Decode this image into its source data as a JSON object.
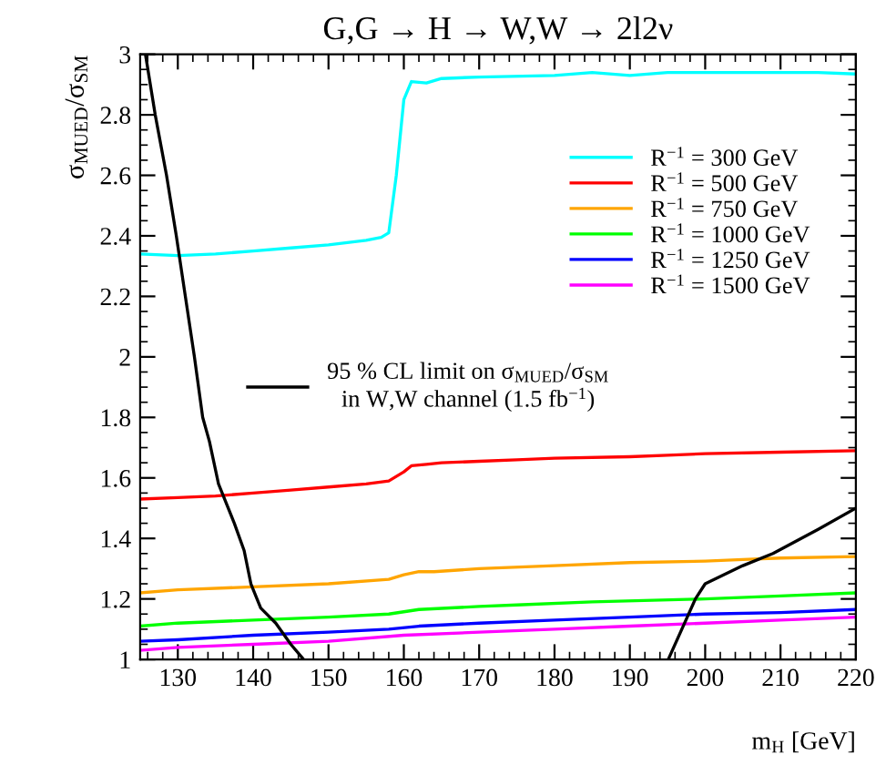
{
  "chart_data": {
    "type": "line",
    "title": "G,G → H → W,W → 2l2ν",
    "xlabel": "m$_{H}$ [GeV]",
    "ylabel": "σ$_{MUED}$/σ$_{SM}$",
    "xlim": [
      125,
      220
    ],
    "xticks": [
      130,
      140,
      150,
      160,
      170,
      180,
      190,
      200,
      210,
      220
    ],
    "ylim": [
      1,
      3
    ],
    "yticks": [
      1,
      1.2,
      1.4,
      1.6,
      1.8,
      2,
      2.2,
      2.4,
      2.6,
      2.8,
      3
    ],
    "grid": false,
    "legend": "right",
    "line_style": "solid",
    "marker": "none",
    "series": [
      {
        "name": "R$^{−1}$ = 300 GeV",
        "color": "#00ffff",
        "x": [
          125,
          130,
          135,
          140,
          145,
          150,
          155,
          157,
          158,
          159,
          160,
          161,
          163,
          165,
          170,
          180,
          185,
          190,
          195,
          200,
          205,
          210,
          215,
          220
        ],
        "values": [
          2.34,
          2.335,
          2.34,
          2.35,
          2.36,
          2.37,
          2.385,
          2.395,
          2.41,
          2.6,
          2.85,
          2.91,
          2.905,
          2.92,
          2.925,
          2.93,
          2.94,
          2.93,
          2.94,
          2.94,
          2.94,
          2.94,
          2.94,
          2.935
        ]
      },
      {
        "name": "R$^{−1}$ = 500 GeV",
        "color": "#ff0000",
        "x": [
          125,
          130,
          135,
          140,
          145,
          150,
          155,
          158,
          160,
          161,
          163,
          165,
          170,
          175,
          180,
          190,
          195,
          200,
          210,
          220
        ],
        "values": [
          1.53,
          1.535,
          1.54,
          1.55,
          1.56,
          1.57,
          1.58,
          1.59,
          1.62,
          1.64,
          1.645,
          1.65,
          1.655,
          1.66,
          1.665,
          1.67,
          1.675,
          1.68,
          1.685,
          1.69
        ]
      },
      {
        "name": "R$^{−1}$ = 750 GeV",
        "color": "#ffa500",
        "x": [
          125,
          130,
          140,
          150,
          158,
          160,
          162,
          164,
          170,
          180,
          190,
          200,
          205,
          210,
          220
        ],
        "values": [
          1.22,
          1.23,
          1.24,
          1.25,
          1.265,
          1.28,
          1.29,
          1.29,
          1.3,
          1.31,
          1.32,
          1.325,
          1.33,
          1.335,
          1.34
        ]
      },
      {
        "name": "R$^{−1}$ = 1000 GeV",
        "color": "#00ff00",
        "x": [
          125,
          130,
          140,
          150,
          158,
          162,
          170,
          175,
          185,
          200,
          210,
          220
        ],
        "values": [
          1.11,
          1.12,
          1.13,
          1.14,
          1.15,
          1.165,
          1.175,
          1.18,
          1.19,
          1.2,
          1.21,
          1.22
        ]
      },
      {
        "name": "R$^{−1}$ = 1250 GeV",
        "color": "#0000ff",
        "x": [
          125,
          130,
          140,
          150,
          158,
          162,
          170,
          180,
          190,
          200,
          210,
          220
        ],
        "values": [
          1.06,
          1.065,
          1.08,
          1.09,
          1.1,
          1.11,
          1.12,
          1.13,
          1.14,
          1.15,
          1.155,
          1.165
        ]
      },
      {
        "name": "R$^{−1}$ = 1500 GeV",
        "color": "#ff00ff",
        "x": [
          125,
          130,
          140,
          150,
          160,
          170,
          180,
          190,
          200,
          210,
          220
        ],
        "values": [
          1.03,
          1.04,
          1.05,
          1.06,
          1.08,
          1.09,
          1.1,
          1.11,
          1.12,
          1.13,
          1.14
        ]
      },
      {
        "name": "95 % CL limit on σ$_{MUED}$/σ$_{SM}$\nin W,W channel (1.5 fb$^{−1}$)",
        "color": "#000000",
        "x": [
          125.7,
          127,
          128.5,
          129.8,
          131,
          132.2,
          133.3,
          134.2,
          135.4,
          137.5,
          138.8,
          139.7,
          141,
          143,
          145,
          146.7,
          null,
          195.1,
          198.7,
          200,
          205,
          209,
          215,
          220
        ],
        "values": [
          3.0,
          2.8,
          2.6,
          2.4,
          2.2,
          2.0,
          1.8,
          1.72,
          1.58,
          1.45,
          1.36,
          1.25,
          1.17,
          1.12,
          1.05,
          1.0,
          null,
          1.0,
          1.2,
          1.25,
          1.31,
          1.35,
          1.43,
          1.5
        ]
      }
    ]
  }
}
